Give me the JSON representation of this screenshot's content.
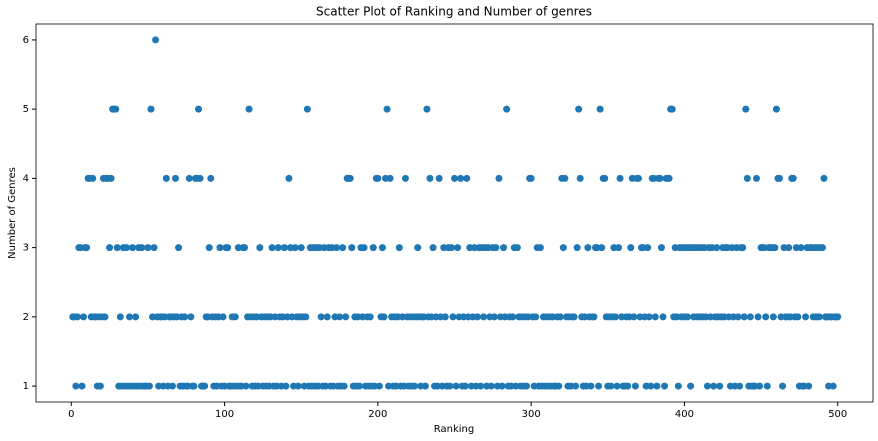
{
  "chart_data": {
    "type": "scatter",
    "title": "Scatter Plot of Ranking and Number of genres",
    "x_label": "Ranking",
    "y_label": "Number of Genres",
    "color": "#1f77b4",
    "xlim": [
      -23,
      523
    ],
    "ylim": [
      0.77,
      6.23
    ],
    "xticks": [
      0,
      100,
      200,
      300,
      400,
      500
    ],
    "yticks": [
      1,
      2,
      3,
      4,
      5,
      6
    ],
    "x": [
      1,
      2,
      3,
      4,
      5,
      6,
      7,
      8,
      9,
      10,
      11,
      12,
      13,
      14,
      15,
      16,
      17,
      18,
      19,
      20,
      21,
      22,
      23,
      24,
      25,
      26,
      27,
      28,
      29,
      30,
      31,
      32,
      33,
      34,
      35,
      36,
      37,
      38,
      39,
      40,
      41,
      42,
      43,
      44,
      45,
      46,
      47,
      48,
      49,
      50,
      51,
      52,
      53,
      54,
      55,
      56,
      57,
      58,
      59,
      60,
      61,
      62,
      63,
      64,
      65,
      66,
      67,
      68,
      69,
      70,
      71,
      72,
      73,
      74,
      75,
      76,
      77,
      78,
      79,
      80,
      81,
      82,
      83,
      84,
      85,
      86,
      87,
      88,
      89,
      90,
      91,
      92,
      93,
      94,
      95,
      96,
      97,
      98,
      99,
      100,
      101,
      102,
      103,
      104,
      105,
      106,
      107,
      108,
      109,
      110,
      111,
      112,
      113,
      114,
      115,
      116,
      117,
      118,
      119,
      120,
      121,
      122,
      123,
      124,
      125,
      126,
      127,
      128,
      129,
      130,
      131,
      132,
      133,
      134,
      135,
      136,
      137,
      138,
      139,
      140,
      141,
      142,
      143,
      144,
      145,
      146,
      147,
      148,
      149,
      150,
      151,
      152,
      153,
      154,
      155,
      156,
      157,
      158,
      159,
      160,
      161,
      162,
      163,
      164,
      165,
      166,
      167,
      168,
      169,
      170,
      171,
      172,
      173,
      174,
      175,
      176,
      177,
      178,
      179,
      180,
      181,
      182,
      183,
      184,
      185,
      186,
      187,
      188,
      189,
      190,
      191,
      192,
      193,
      194,
      195,
      196,
      197,
      198,
      199,
      200,
      201,
      202,
      203,
      204,
      205,
      206,
      207,
      208,
      209,
      210,
      211,
      212,
      213,
      214,
      215,
      216,
      217,
      218,
      219,
      220,
      221,
      222,
      223,
      224,
      225,
      226,
      227,
      228,
      229,
      230,
      231,
      232,
      233,
      234,
      235,
      236,
      237,
      238,
      239,
      240,
      241,
      242,
      243,
      244,
      245,
      246,
      247,
      248,
      249,
      250,
      251,
      252,
      253,
      254,
      255,
      256,
      257,
      258,
      259,
      260,
      261,
      262,
      263,
      264,
      265,
      266,
      267,
      268,
      269,
      270,
      271,
      272,
      273,
      274,
      275,
      276,
      277,
      278,
      279,
      280,
      281,
      282,
      283,
      284,
      285,
      286,
      287,
      288,
      289,
      290,
      291,
      292,
      293,
      294,
      295,
      296,
      297,
      298,
      299,
      300,
      301,
      302,
      303,
      304,
      305,
      306,
      307,
      308,
      309,
      310,
      311,
      312,
      313,
      314,
      315,
      316,
      317,
      318,
      319,
      320,
      321,
      322,
      323,
      324,
      325,
      326,
      327,
      328,
      329,
      330,
      331,
      332,
      333,
      334,
      335,
      336,
      337,
      338,
      339,
      340,
      341,
      342,
      343,
      344,
      345,
      346,
      347,
      348,
      349,
      350,
      351,
      352,
      353,
      354,
      355,
      356,
      357,
      358,
      359,
      360,
      361,
      362,
      363,
      364,
      365,
      366,
      367,
      368,
      369,
      370,
      371,
      372,
      373,
      374,
      375,
      376,
      377,
      378,
      379,
      380,
      381,
      382,
      383,
      384,
      385,
      386,
      387,
      388,
      389,
      390,
      391,
      392,
      393,
      394,
      395,
      396,
      397,
      398,
      399,
      400,
      401,
      402,
      403,
      404,
      405,
      406,
      407,
      408,
      409,
      410,
      411,
      412,
      413,
      414,
      415,
      416,
      417,
      418,
      419,
      420,
      421,
      422,
      423,
      424,
      425,
      426,
      427,
      428,
      429,
      430,
      431,
      432,
      433,
      434,
      435,
      436,
      437,
      438,
      439,
      440,
      441,
      442,
      443,
      444,
      445,
      446,
      447,
      448,
      449,
      450,
      451,
      452,
      453,
      454,
      455,
      456,
      457,
      458,
      459,
      460,
      461,
      462,
      463,
      464,
      465,
      466,
      467,
      468,
      469,
      470,
      471,
      472,
      473,
      474,
      475,
      476,
      477,
      478,
      479,
      480,
      481,
      482,
      483,
      484,
      485,
      486,
      487,
      488,
      489,
      490,
      491,
      492,
      493,
      494,
      495,
      496,
      497,
      498,
      499,
      500
    ],
    "values": [
      2,
      2,
      1,
      2,
      3,
      3,
      1,
      2,
      3,
      3,
      4,
      4,
      2,
      4,
      2,
      2,
      1,
      2,
      1,
      2,
      4,
      2,
      4,
      4,
      3,
      4,
      5,
      5,
      5,
      3,
      1,
      2,
      1,
      3,
      1,
      3,
      1,
      2,
      1,
      3,
      1,
      2,
      1,
      3,
      1,
      3,
      1,
      1,
      1,
      3,
      1,
      5,
      2,
      3,
      6,
      2,
      1,
      2,
      2,
      1,
      2,
      4,
      1,
      2,
      2,
      1,
      2,
      4,
      2,
      3,
      1,
      2,
      1,
      2,
      1,
      1,
      4,
      2,
      1,
      1,
      4,
      4,
      5,
      4,
      1,
      1,
      1,
      2,
      2,
      3,
      4,
      2,
      1,
      2,
      1,
      2,
      3,
      1,
      2,
      1,
      3,
      3,
      1,
      1,
      2,
      1,
      2,
      1,
      3,
      1,
      1,
      3,
      3,
      1,
      2,
      5,
      2,
      1,
      2,
      1,
      2,
      1,
      3,
      2,
      1,
      2,
      1,
      2,
      1,
      2,
      3,
      1,
      2,
      1,
      3,
      2,
      1,
      2,
      3,
      1,
      2,
      4,
      3,
      2,
      1,
      3,
      2,
      1,
      2,
      3,
      2,
      1,
      2,
      5,
      1,
      3,
      1,
      3,
      1,
      3,
      1,
      3,
      2,
      1,
      3,
      1,
      2,
      3,
      1,
      3,
      1,
      2,
      3,
      1,
      2,
      1,
      3,
      1,
      2,
      4,
      4,
      4,
      3,
      1,
      2,
      1,
      2,
      1,
      3,
      2,
      3,
      1,
      2,
      1,
      2,
      1,
      3,
      1,
      4,
      4,
      1,
      2,
      3,
      2,
      4,
      5,
      1,
      4,
      2,
      1,
      2,
      1,
      2,
      3,
      1,
      2,
      1,
      4,
      2,
      1,
      2,
      1,
      2,
      1,
      2,
      3,
      2,
      1,
      2,
      2,
      1,
      5,
      2,
      4,
      2,
      3,
      1,
      2,
      1,
      4,
      2,
      1,
      3,
      2,
      1,
      3,
      1,
      3,
      2,
      4,
      1,
      3,
      2,
      4,
      1,
      2,
      1,
      4,
      2,
      3,
      1,
      2,
      3,
      1,
      2,
      3,
      1,
      3,
      2,
      3,
      1,
      3,
      2,
      1,
      3,
      2,
      3,
      1,
      4,
      2,
      1,
      3,
      2,
      5,
      1,
      2,
      1,
      2,
      3,
      1,
      3,
      2,
      1,
      2,
      1,
      2,
      1,
      2,
      4,
      4,
      2,
      1,
      2,
      3,
      1,
      3,
      1,
      2,
      1,
      2,
      1,
      2,
      1,
      2,
      1,
      1,
      2,
      1,
      2,
      4,
      3,
      4,
      2,
      1,
      2,
      1,
      2,
      2,
      1,
      3,
      5,
      4,
      2,
      1,
      2,
      1,
      3,
      2,
      1,
      2,
      2,
      3,
      3,
      1,
      5,
      3,
      4,
      4,
      2,
      1,
      2,
      1,
      2,
      3,
      2,
      1,
      3,
      4,
      2,
      1,
      1,
      2,
      1,
      2,
      3,
      4,
      2,
      1,
      4,
      4,
      2,
      3,
      3,
      2,
      1,
      3,
      2,
      1,
      4,
      4,
      2,
      1,
      4,
      4,
      3,
      2,
      1,
      4,
      4,
      4,
      5,
      5,
      2,
      3,
      2,
      1,
      3,
      2,
      3,
      2,
      3,
      2,
      3,
      1,
      3,
      2,
      3,
      2,
      3,
      2,
      3,
      2,
      3,
      2,
      1,
      3,
      2,
      3,
      1,
      2,
      3,
      2,
      1,
      2,
      3,
      2,
      3,
      3,
      2,
      1,
      3,
      2,
      1,
      3,
      2,
      1,
      3,
      3,
      2,
      5,
      4,
      1,
      2,
      1,
      1,
      1,
      4,
      2,
      1,
      3,
      3,
      3,
      2,
      1,
      3,
      3,
      3,
      2,
      3,
      5,
      4,
      4,
      2,
      1,
      3,
      2,
      2,
      3,
      2,
      4,
      4,
      2,
      3,
      2,
      1,
      3,
      1,
      1,
      2,
      3,
      1,
      3,
      3,
      2,
      3,
      2,
      3,
      2,
      3,
      3,
      4,
      2,
      2,
      1,
      2,
      2,
      1,
      2,
      2,
      2
    ]
  }
}
